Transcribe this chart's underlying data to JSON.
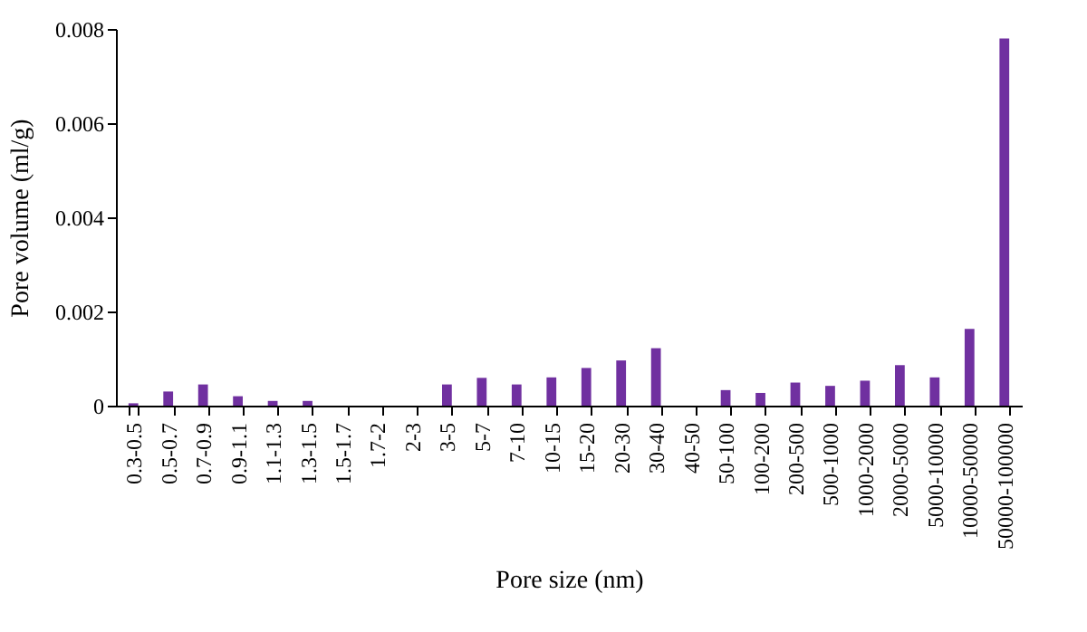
{
  "chart_data": {
    "type": "bar",
    "xlabel": "Pore size (nm)",
    "ylabel": "Pore volume (ml/g)",
    "categories": [
      "0.3-0.5",
      "0.5-0.7",
      "0.7-0.9",
      "0.9-1.1",
      "1.1-1.3",
      "1.3-1.5",
      "1.5-1.7",
      "1.7-2",
      "2-3",
      "3-5",
      "5-7",
      "7-10",
      "10-15",
      "15-20",
      "20-30",
      "30-40",
      "40-50",
      "50-100",
      "100-200",
      "200-500",
      "500-1000",
      "1000-2000",
      "2000-5000",
      "5000-10000",
      "10000-50000",
      "50000-100000"
    ],
    "values": [
      5e-05,
      0.0003,
      0.00045,
      0.0002,
      0.0001,
      0.0001,
      0,
      0,
      0,
      0.00045,
      0.00059,
      0.00045,
      0.0006,
      0.0008,
      0.00096,
      0.00122,
      0,
      0.00033,
      0.00027,
      0.00049,
      0.00042,
      0.00053,
      0.00086,
      0.0006,
      0.00163,
      0.0078
    ],
    "color": "#7030a0",
    "ylim": [
      0,
      0.008
    ],
    "yticks": [
      0,
      0.002,
      0.004,
      0.006,
      0.008
    ],
    "grid": false
  }
}
